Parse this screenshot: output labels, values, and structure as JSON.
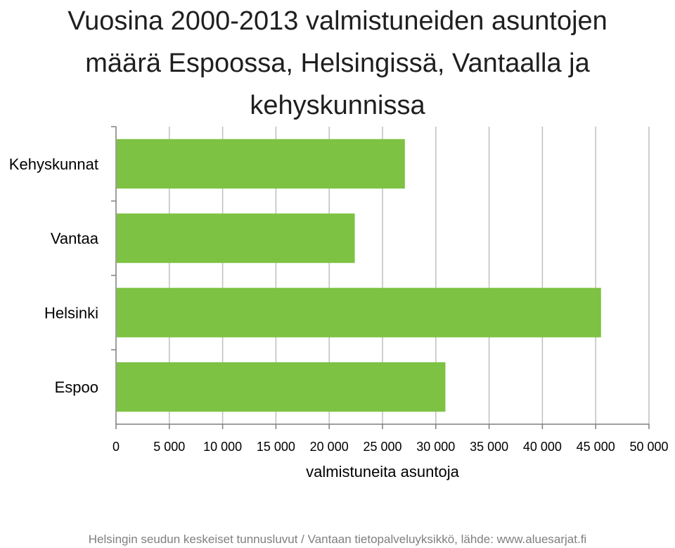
{
  "title_lines": [
    "Vuosina 2000-2013 valmistuneiden asuntojen",
    "määrä Espoossa, Helsingissä, Vantaalla ja",
    "kehyskunnissa"
  ],
  "footer": "Helsingin seudun keskeiset tunnusluvut / Vantaan tietopalveluyksikkö, lähde: www.aluesarjat.fi",
  "colors": {
    "bar": "#7dc242",
    "grid": "#bfbfbf",
    "axis": "#7f7f7f",
    "text": "#000000"
  },
  "chart_data": {
    "type": "bar",
    "orientation": "horizontal",
    "categories": [
      "Kehyskunnat",
      "Vantaa",
      "Helsinki",
      "Espoo"
    ],
    "values": [
      27100,
      22400,
      45500,
      30900
    ],
    "xlabel": "valmistuneita asuntoja",
    "ylabel": "",
    "xlim": [
      0,
      50000
    ],
    "xticks": [
      0,
      5000,
      10000,
      15000,
      20000,
      25000,
      30000,
      35000,
      40000,
      45000,
      50000
    ],
    "xtick_labels": [
      "0",
      "5 000",
      "10 000",
      "15 000",
      "20 000",
      "25 000",
      "30 000",
      "35 000",
      "40 000",
      "45 000",
      "50 000"
    ],
    "grid": true,
    "legend": "none"
  }
}
